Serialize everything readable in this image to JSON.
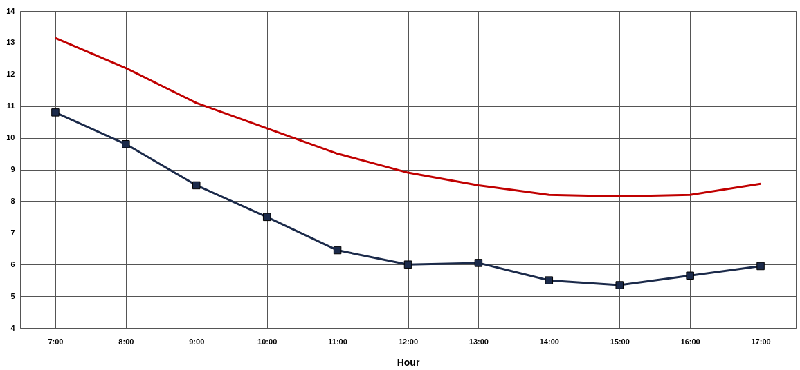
{
  "chart_data": {
    "type": "line",
    "xlabel": "Hour",
    "categories": [
      "7:00",
      "8:00",
      "9:00",
      "10:00",
      "11:00",
      "12:00",
      "13:00",
      "14:00",
      "15:00",
      "16:00",
      "17:00"
    ],
    "series": [
      {
        "color": "#c00000",
        "marker": "none",
        "values": [
          13.15,
          12.2,
          11.1,
          10.3,
          9.5,
          8.9,
          8.5,
          8.2,
          8.15,
          8.2,
          8.55
        ]
      },
      {
        "color": "#1b2a4a",
        "marker": "square",
        "values": [
          10.8,
          9.8,
          8.5,
          7.5,
          6.45,
          6.0,
          6.05,
          5.5,
          5.35,
          5.65,
          5.95
        ]
      }
    ],
    "ylim": [
      4,
      14
    ],
    "yticks": [
      4,
      5,
      6,
      7,
      8,
      9,
      10,
      11,
      12,
      13,
      14
    ],
    "grid": true
  }
}
